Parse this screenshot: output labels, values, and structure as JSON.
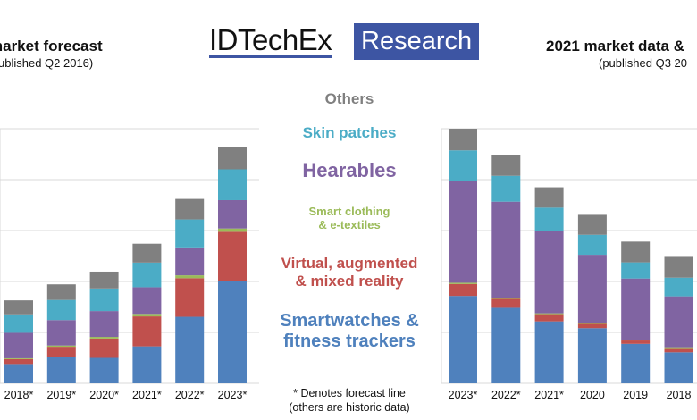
{
  "colors": {
    "Others": "#808080",
    "Skin patches": "#4bacc6",
    "Hearables": "#8064a2",
    "Smart clothing & e-textiles": "#9bbb59",
    "Virtual, augmented & mixed reality": "#c0504d",
    "Smartwatches & fitness trackers": "#4f81bd",
    "logo_box": "#3d55a3"
  },
  "logo": {
    "left": "IDTechEx",
    "right": "Research"
  },
  "legend": {
    "others": "Others",
    "skin_patches": "Skin patches",
    "hearables": "Hearables",
    "smart_clothing_1": "Smart clothing",
    "smart_clothing_2": "& e-textiles",
    "vr_1": "Virtual, augmented",
    "vr_2": "& mixed reality",
    "smartwatch_1": "Smartwatches &",
    "smartwatch_2": "fitness trackers"
  },
  "footnote": {
    "line1": "* Denotes forecast line",
    "line2": "(others are historic data)"
  },
  "chart_data": [
    {
      "type": "bar",
      "stacked": true,
      "title": "market forecast",
      "subtitle": "ublished Q2 2016)",
      "categories": [
        "2018*",
        "2019*",
        "2020*",
        "2021*",
        "2022*",
        "2023*"
      ],
      "ylim": [
        0,
        6.2
      ],
      "grid": true,
      "series": [
        {
          "name": "Smartwatches & fitness trackers",
          "values": [
            0.47,
            0.64,
            0.62,
            0.9,
            1.62,
            2.48
          ]
        },
        {
          "name": "Virtual, augmented & mixed reality",
          "values": [
            0.12,
            0.25,
            0.47,
            0.73,
            0.94,
            1.21
          ]
        },
        {
          "name": "Smart clothing & e-textiles",
          "values": [
            0.02,
            0.03,
            0.04,
            0.06,
            0.07,
            0.08
          ]
        },
        {
          "name": "Hearables",
          "values": [
            0.62,
            0.62,
            0.63,
            0.65,
            0.68,
            0.69
          ]
        },
        {
          "name": "Skin patches",
          "values": [
            0.45,
            0.49,
            0.55,
            0.6,
            0.68,
            0.75
          ]
        },
        {
          "name": "Others",
          "values": [
            0.34,
            0.38,
            0.41,
            0.46,
            0.5,
            0.55
          ]
        }
      ]
    },
    {
      "type": "bar",
      "stacked": true,
      "title": "2021 market data &",
      "subtitle": "(published Q3 20",
      "categories": [
        "2023*",
        "2022*",
        "2021*",
        "2020",
        "2019",
        "2018"
      ],
      "ylim": [
        0,
        6.0
      ],
      "grid": true,
      "series": [
        {
          "name": "Smartwatches & fitness trackers",
          "values": [
            2.06,
            1.78,
            1.46,
            1.3,
            0.93,
            0.73
          ]
        },
        {
          "name": "Virtual, augmented & mixed reality",
          "values": [
            0.28,
            0.21,
            0.17,
            0.1,
            0.08,
            0.1
          ]
        },
        {
          "name": "Smart clothing & e-textiles",
          "values": [
            0.03,
            0.03,
            0.02,
            0.02,
            0.02,
            0.02
          ]
        },
        {
          "name": "Hearables",
          "values": [
            2.4,
            2.26,
            1.95,
            1.61,
            1.44,
            1.2
          ]
        },
        {
          "name": "Skin patches",
          "values": [
            0.72,
            0.61,
            0.54,
            0.47,
            0.38,
            0.44
          ]
        },
        {
          "name": "Others",
          "values": [
            0.51,
            0.48,
            0.48,
            0.47,
            0.49,
            0.49
          ]
        }
      ]
    }
  ]
}
